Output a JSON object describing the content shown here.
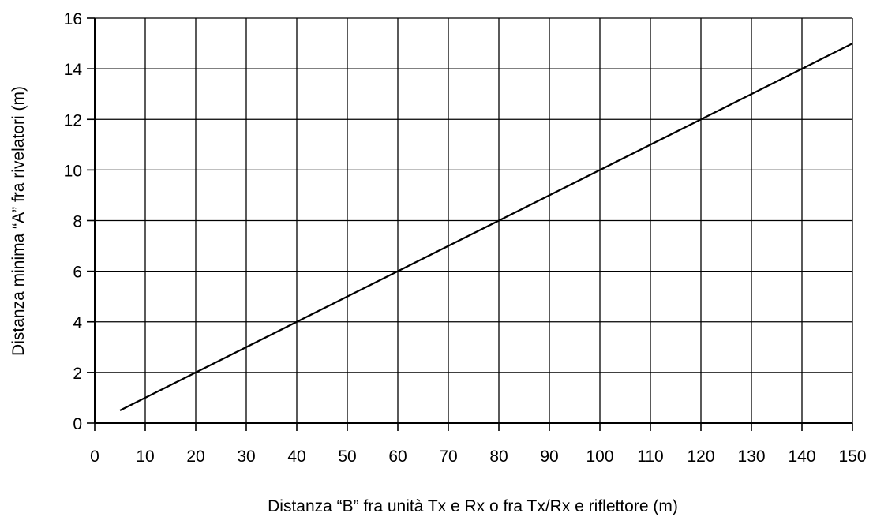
{
  "chart_data": {
    "type": "line",
    "title": "",
    "xlabel": "Distanza “B” fra unità Tx e Rx o fra Tx/Rx e riflettore  (m)",
    "ylabel": "Distanza minima “A” fra rivelatori  (m)",
    "xlim": [
      0,
      150
    ],
    "ylim": [
      0,
      16
    ],
    "xticks": [
      0,
      10,
      20,
      30,
      40,
      50,
      60,
      70,
      80,
      90,
      100,
      110,
      120,
      130,
      140,
      150
    ],
    "yticks": [
      0,
      2,
      4,
      6,
      8,
      10,
      12,
      14,
      16
    ],
    "grid": true,
    "series": [
      {
        "x": [
          5,
          150
        ],
        "y": [
          0.5,
          15
        ]
      }
    ],
    "colors": {
      "line": "#000000",
      "grid": "#000000",
      "background": "#ffffff"
    }
  }
}
